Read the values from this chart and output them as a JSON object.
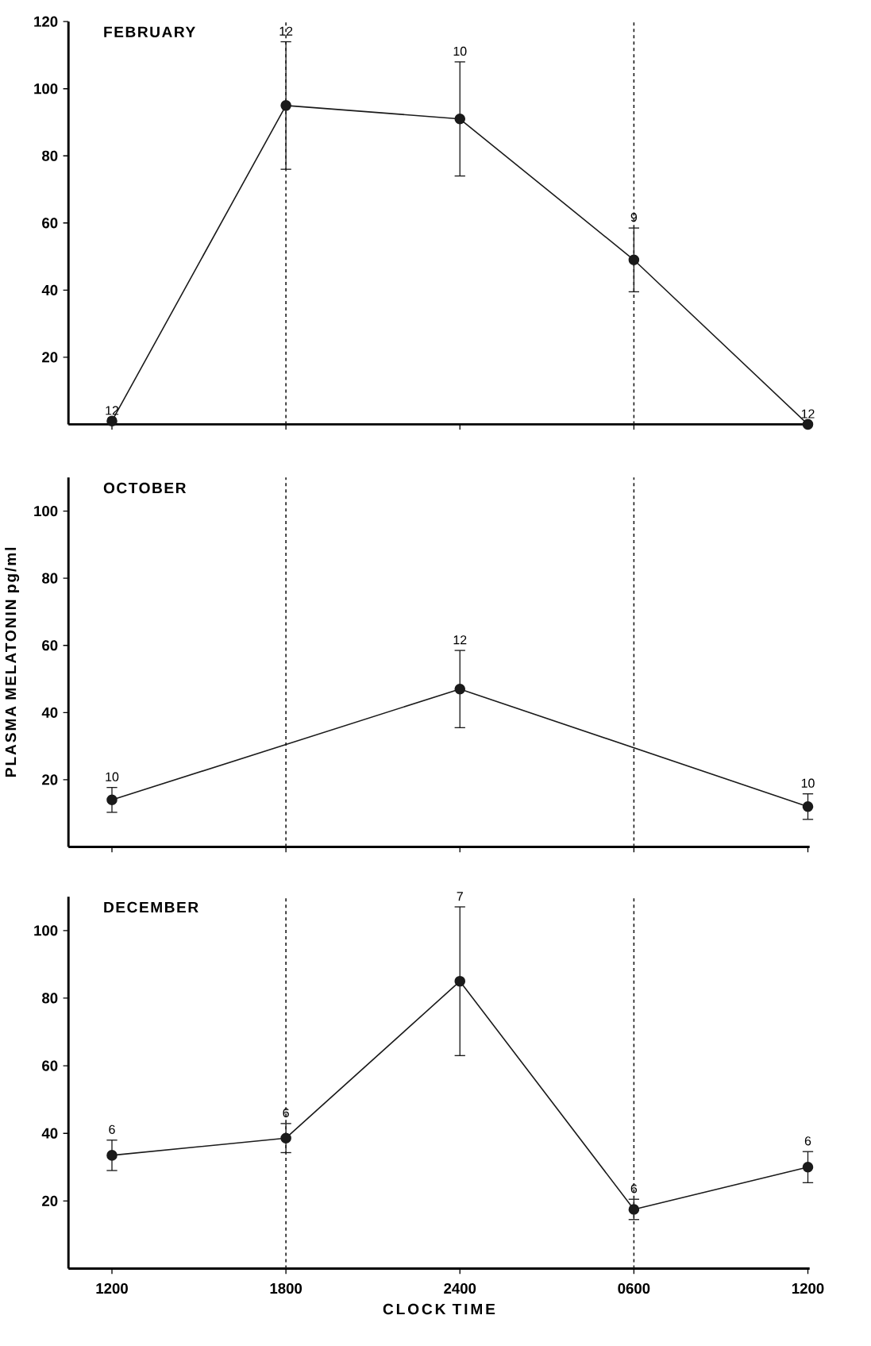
{
  "chart_data": [
    {
      "type": "line",
      "title": "FEBRUARY",
      "marker": "circle",
      "line_style": "solid",
      "tick_labels": "y",
      "categories": [
        "1200",
        "1800",
        "2400",
        "0600",
        "1200"
      ],
      "ylim": [
        0,
        120
      ],
      "yticks": [
        20,
        40,
        60,
        80,
        100,
        120
      ],
      "series": [
        {
          "color": "#1a1a1a",
          "values": [
            1,
            95,
            91,
            49,
            0
          ],
          "errors": [
            null,
            19,
            17,
            9.5,
            null
          ]
        }
      ],
      "ref_lines": [
        {
          "axis": "x",
          "value": "1800",
          "color": "#1a1a1a",
          "line_style": "dashed"
        },
        {
          "axis": "x",
          "value": "0600",
          "color": "#1a1a1a",
          "line_style": "dashed"
        }
      ],
      "annotations": [
        {
          "text": "12",
          "x": "1200",
          "y": 1
        },
        {
          "text": "12",
          "x": "1800",
          "y": 114
        },
        {
          "text": "10",
          "x": "2400",
          "y": 108
        },
        {
          "text": "9",
          "x": "0600",
          "y": 58.5
        },
        {
          "text": "12",
          "y": 0
        }
      ]
    },
    {
      "type": "line",
      "title": "OCTOBER",
      "ylabel": "PLASMA MELATONIN pg/ml",
      "marker": "circle",
      "line_style": "solid",
      "tick_labels": "y",
      "categories": [
        "1200",
        "1800",
        "2400",
        "0600",
        "1200"
      ],
      "ylim": [
        0,
        110
      ],
      "yticks": [
        20,
        40,
        60,
        80,
        100
      ],
      "series": [
        {
          "color": "#1a1a1a",
          "values": [
            14,
            null,
            47,
            null,
            12
          ],
          "errors": [
            3.7,
            null,
            11.5,
            null,
            3.8
          ]
        }
      ],
      "ref_lines": [
        {
          "axis": "x",
          "value": "1800",
          "color": "#1a1a1a",
          "line_style": "dashed"
        },
        {
          "axis": "x",
          "value": "0600",
          "color": "#1a1a1a",
          "line_style": "dashed"
        }
      ],
      "annotations": [
        {
          "text": "10",
          "x": "1200",
          "y": 17.7
        },
        {
          "text": "12",
          "x": "2400",
          "y": 58.5
        },
        {
          "text": "10",
          "y": 15.8
        }
      ]
    },
    {
      "type": "line",
      "title": "DECEMBER",
      "xlabel": "CLOCK TIME",
      "marker": "circle",
      "line_style": "solid",
      "categories": [
        "1200",
        "1800",
        "2400",
        "0600",
        "1200"
      ],
      "ylim": [
        0,
        110
      ],
      "yticks": [
        20,
        40,
        60,
        80,
        100
      ],
      "series": [
        {
          "color": "#1a1a1a",
          "values": [
            33.5,
            38.6,
            85,
            17.5,
            30
          ],
          "errors": [
            4.5,
            4.3,
            22,
            3,
            4.6
          ]
        }
      ],
      "ref_lines": [
        {
          "axis": "x",
          "value": "1800",
          "color": "#1a1a1a",
          "line_style": "dashed"
        },
        {
          "axis": "x",
          "value": "0600",
          "color": "#1a1a1a",
          "line_style": "dashed"
        }
      ],
      "annotations": [
        {
          "text": "6",
          "x": "1200",
          "y": 38
        },
        {
          "text": "6",
          "x": "1800",
          "y": 42.9
        },
        {
          "text": "7",
          "x": "2400",
          "y": 107
        },
        {
          "text": "6",
          "x": "0600",
          "y": 20.5
        },
        {
          "text": "6",
          "y": 34.6
        }
      ]
    }
  ]
}
